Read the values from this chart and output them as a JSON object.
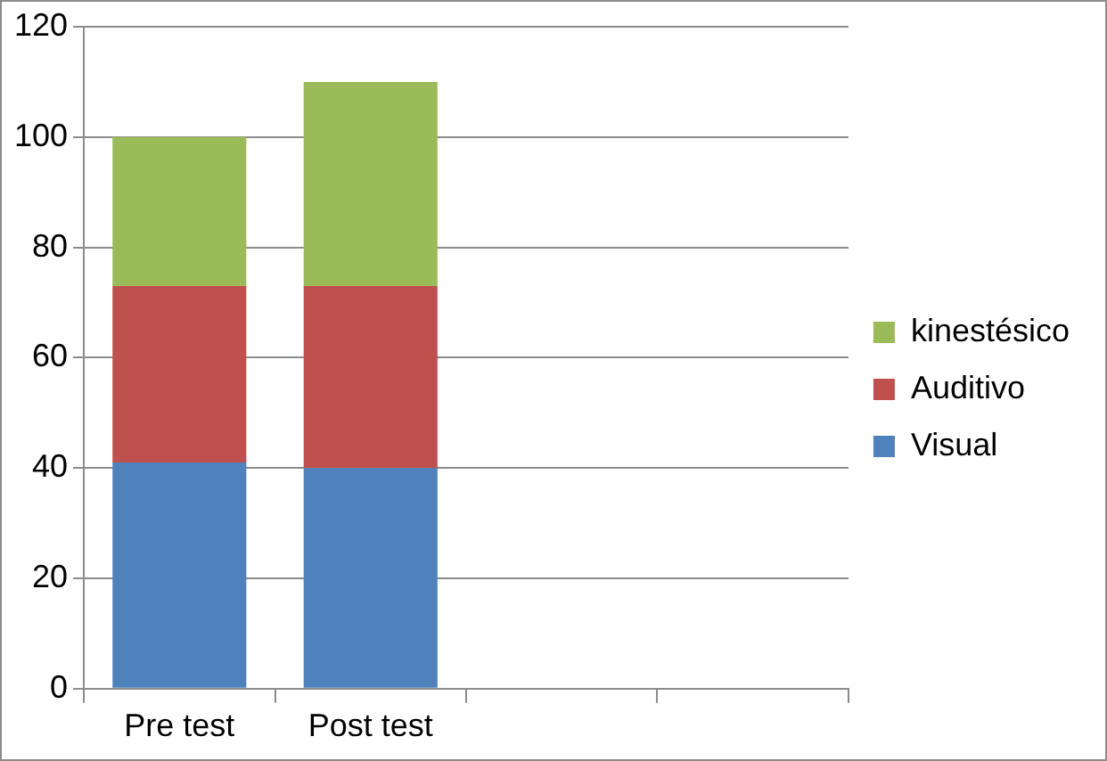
{
  "chart_data": {
    "type": "bar",
    "stacked": true,
    "categories": [
      "Pre test",
      "Post test",
      null,
      null
    ],
    "series": [
      {
        "name": "Visual",
        "color": "#4f81bd",
        "values": [
          41,
          40,
          null,
          null
        ]
      },
      {
        "name": "Auditivo",
        "color": "#c0504d",
        "values": [
          32,
          33,
          null,
          null
        ]
      },
      {
        "name": "kinestésico",
        "color": "#9bbb59",
        "values": [
          27,
          37,
          null,
          null
        ]
      }
    ],
    "ylim": [
      0,
      120
    ],
    "yticks": [
      0,
      20,
      40,
      60,
      80,
      100,
      120
    ],
    "grid": "y",
    "legend": "right"
  }
}
